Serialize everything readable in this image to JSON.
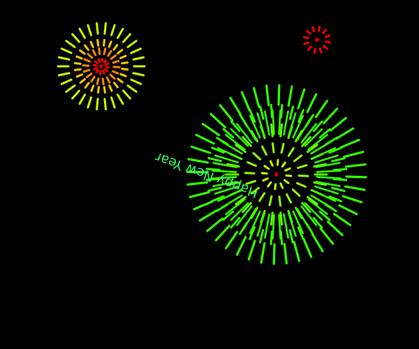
{
  "greeting": {
    "text": "Happy New Year",
    "color": "#33ff66"
  },
  "palette": {
    "background": "#000000",
    "core": "#ff0000",
    "inner": "#ff8000",
    "middle": "#ffff00",
    "outer": "#aaff00",
    "green": "#33ff00"
  },
  "fireworks": [
    {
      "id": "firework-top-left",
      "core_color": "#ff0000",
      "ring_colors": [
        "#ff0000",
        "#ff8c00",
        "#ffd000",
        "#c8ff00"
      ]
    },
    {
      "id": "firework-top-right",
      "core_color": "#ff0000",
      "ring_colors": [
        "#ff0000"
      ]
    },
    {
      "id": "firework-large",
      "core_color": "#ff0000",
      "ring_colors": [
        "#ccff00",
        "#99ff00",
        "#66ff00",
        "#33ff00",
        "#33ff00",
        "#33ff00"
      ]
    }
  ]
}
